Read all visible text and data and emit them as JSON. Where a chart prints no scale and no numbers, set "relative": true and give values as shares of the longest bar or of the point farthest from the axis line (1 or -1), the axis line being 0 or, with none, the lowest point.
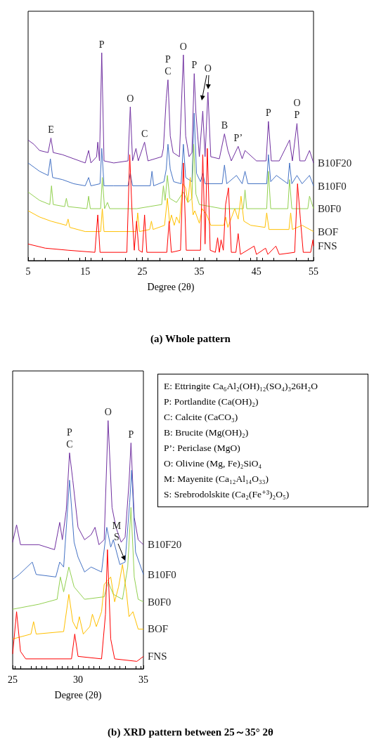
{
  "chart_data": [
    {
      "type": "line",
      "title": "(a) Whole pattern",
      "xlabel": "Degree (2θ)",
      "relative": true,
      "xlim": [
        5,
        55
      ],
      "xticks": [
        5,
        15,
        25,
        35,
        45,
        55
      ],
      "grid": false,
      "legend": false,
      "marker": "none",
      "series": [
        {
          "name": "B10F20",
          "color": "#7030a0",
          "x": [
            5,
            6,
            7,
            8.5,
            9.0,
            9.4,
            11,
            13,
            15,
            15.6,
            16,
            17.0,
            17.2,
            17.5,
            17.9,
            18.3,
            20,
            22.5,
            22.9,
            23.3,
            23.9,
            24.3,
            25.4,
            26,
            28.4,
            28.7,
            29.2,
            29.5,
            29.9,
            30.4,
            31.5,
            32.2,
            32.6,
            33.2,
            33.7,
            34.1,
            34.4,
            35.0,
            35.6,
            36.0,
            36.5,
            37.0,
            38.5,
            39.4,
            40.0,
            40.6,
            41.8,
            42.5,
            43.0,
            45,
            46.7,
            47.1,
            47.6,
            49,
            50.8,
            51.3,
            52.1,
            52.6,
            53.5,
            54.3,
            55
          ],
          "values": [
            0.58,
            0.56,
            0.53,
            0.52,
            0.59,
            0.52,
            0.51,
            0.49,
            0.47,
            0.53,
            0.47,
            0.5,
            0.57,
            0.48,
            1.0,
            0.48,
            0.47,
            0.48,
            0.74,
            0.48,
            0.54,
            0.48,
            0.57,
            0.48,
            0.5,
            0.54,
            0.78,
            0.87,
            0.6,
            0.52,
            0.5,
            0.99,
            0.6,
            0.5,
            0.52,
            0.9,
            0.71,
            0.5,
            0.72,
            0.5,
            0.81,
            0.5,
            0.49,
            0.61,
            0.53,
            0.48,
            0.55,
            0.49,
            0.53,
            0.48,
            0.48,
            0.67,
            0.48,
            0.48,
            0.58,
            0.48,
            0.66,
            0.48,
            0.48,
            0.53,
            0.47
          ]
        },
        {
          "name": "B10F0",
          "color": "#4472c4",
          "x": [
            5,
            6,
            7,
            8.5,
            8.9,
            9.3,
            11,
            13,
            15,
            15.6,
            16,
            17.6,
            17.9,
            18.3,
            20,
            22.5,
            22.9,
            23.3,
            26.4,
            26.7,
            27,
            28.8,
            29.2,
            29.5,
            29.9,
            30.5,
            31.8,
            32.2,
            32.6,
            33.7,
            34.1,
            34.5,
            35.2,
            35.6,
            36,
            39,
            39.4,
            39.8,
            41.5,
            42.5,
            43,
            43.5,
            46.8,
            47.1,
            47.5,
            48.5,
            50.5,
            50.8,
            51.2,
            52.1,
            53,
            54.3,
            55
          ],
          "values": [
            0.47,
            0.45,
            0.43,
            0.41,
            0.49,
            0.4,
            0.39,
            0.37,
            0.36,
            0.4,
            0.36,
            0.37,
            0.54,
            0.36,
            0.36,
            0.36,
            0.42,
            0.36,
            0.36,
            0.43,
            0.36,
            0.38,
            0.44,
            0.56,
            0.44,
            0.38,
            0.37,
            0.56,
            0.4,
            0.38,
            0.71,
            0.42,
            0.38,
            0.42,
            0.37,
            0.37,
            0.46,
            0.37,
            0.41,
            0.37,
            0.43,
            0.37,
            0.37,
            0.51,
            0.38,
            0.41,
            0.37,
            0.47,
            0.37,
            0.41,
            0.37,
            0.41,
            0.36
          ]
        },
        {
          "name": "B0F0",
          "color": "#92d050",
          "x": [
            5,
            7,
            8.8,
            9.1,
            9.4,
            11.4,
            11.7,
            12,
            15.3,
            15.6,
            15.9,
            17.7,
            18.0,
            18.4,
            18.9,
            19.3,
            24,
            28.4,
            28.7,
            29.0,
            29.4,
            29.8,
            31,
            32.2,
            33,
            33.7,
            34.0,
            34.4,
            35,
            39,
            42.7,
            43.0,
            43.3,
            46.8,
            47.1,
            47.5,
            50.5,
            50.8,
            51.2,
            54,
            54.3,
            55
          ],
          "values": [
            0.33,
            0.29,
            0.27,
            0.36,
            0.27,
            0.26,
            0.3,
            0.26,
            0.25,
            0.31,
            0.25,
            0.25,
            0.4,
            0.25,
            0.28,
            0.25,
            0.25,
            0.27,
            0.36,
            0.29,
            0.41,
            0.3,
            0.28,
            0.33,
            0.28,
            0.3,
            0.56,
            0.32,
            0.27,
            0.25,
            0.25,
            0.34,
            0.25,
            0.25,
            0.43,
            0.25,
            0.25,
            0.39,
            0.25,
            0.25,
            0.31,
            0.25
          ]
        },
        {
          "name": "BOF",
          "color": "#ffc000",
          "x": [
            5,
            7,
            9,
            11.7,
            12.0,
            12.3,
            15,
            17.7,
            18.0,
            18.3,
            21,
            23.9,
            24.2,
            24.5,
            26.3,
            26.6,
            26.9,
            28.9,
            29.4,
            29.8,
            30.1,
            30.6,
            31.0,
            31.5,
            32.1,
            32.6,
            33.0,
            33.4,
            33.9,
            34.2,
            35.0,
            35.5,
            36.3,
            37,
            39.3,
            39.6,
            40,
            41.2,
            41.8,
            42.3,
            42.8,
            44,
            46.5,
            46.8,
            47.2,
            50.7,
            51.0,
            51.3,
            53,
            55
          ],
          "values": [
            0.24,
            0.21,
            0.19,
            0.17,
            0.2,
            0.16,
            0.14,
            0.14,
            0.25,
            0.14,
            0.14,
            0.14,
            0.23,
            0.14,
            0.15,
            0.19,
            0.15,
            0.17,
            0.3,
            0.18,
            0.22,
            0.17,
            0.21,
            0.18,
            0.37,
            0.35,
            0.28,
            0.4,
            0.22,
            0.24,
            0.18,
            0.25,
            0.22,
            0.17,
            0.17,
            0.21,
            0.16,
            0.25,
            0.2,
            0.31,
            0.19,
            0.17,
            0.16,
            0.23,
            0.15,
            0.15,
            0.23,
            0.15,
            0.17,
            0.14
          ]
        },
        {
          "name": "FNS",
          "color": "#ff0000",
          "x": [
            5,
            8,
            12,
            16.7,
            17.2,
            17.6,
            22.3,
            22.8,
            23.2,
            23.6,
            24.0,
            24.4,
            25.0,
            25.4,
            25.8,
            29.3,
            29.7,
            30.1,
            31.7,
            32.2,
            32.7,
            35.2,
            35.6,
            36.0,
            36.4,
            36.9,
            37.8,
            38.2,
            38.5,
            38.8,
            39.2,
            39.6,
            40.1,
            40.6,
            41.4,
            41.8,
            42.2,
            44.6,
            45,
            46.6,
            47,
            48.4,
            49,
            51.7,
            52.2,
            52.7,
            53.2,
            54.5,
            54.9,
            55
          ],
          "values": [
            0.08,
            0.06,
            0.05,
            0.04,
            0.22,
            0.04,
            0.04,
            0.51,
            0.24,
            0.05,
            0.19,
            0.05,
            0.04,
            0.22,
            0.04,
            0.04,
            0.19,
            0.04,
            0.05,
            0.47,
            0.05,
            0.05,
            0.51,
            0.08,
            0.54,
            0.05,
            0.04,
            0.11,
            0.04,
            0.1,
            0.05,
            0.27,
            0.35,
            0.04,
            0.04,
            0.13,
            0.03,
            0.07,
            0.03,
            0.06,
            0.03,
            0.07,
            0.03,
            0.04,
            0.37,
            0.2,
            0.04,
            0.04,
            0.1,
            0.07
          ]
        }
      ],
      "annotations": [
        {
          "text": "E",
          "x": 9.0,
          "y": 0.59
        },
        {
          "text": "P",
          "x": 17.9,
          "y": 1.0
        },
        {
          "text": "O",
          "x": 22.9,
          "y": 0.74
        },
        {
          "text": "C",
          "x": 25.4,
          "y": 0.57
        },
        {
          "text": "P",
          "x": 29.5,
          "y": 0.87
        },
        {
          "text": "C",
          "x": 29.5,
          "y": 0.87
        },
        {
          "text": "O",
          "x": 32.2,
          "y": 0.99
        },
        {
          "text": "P",
          "x": 34.1,
          "y": 0.9
        },
        {
          "text": "O",
          "x": 36.5,
          "y": 0.81
        },
        {
          "text": "B",
          "x": 39.4,
          "y": 0.61
        },
        {
          "text": "P’",
          "x": 41.8,
          "y": 0.55
        },
        {
          "text": "P",
          "x": 47.1,
          "y": 0.67
        },
        {
          "text": "O",
          "x": 52.1,
          "y": 0.66
        },
        {
          "text": "P",
          "x": 52.1,
          "y": 0.66
        }
      ]
    },
    {
      "type": "line",
      "title": "(b) XRD pattern between 25～35° 2θ",
      "xlabel": "Degree (2θ)",
      "relative": true,
      "xlim": [
        25,
        35
      ],
      "xticks": [
        25,
        30,
        35
      ],
      "grid": false,
      "legend": false,
      "marker": "none",
      "series": [
        {
          "name": "B10F20",
          "color": "#7030a0",
          "x": [
            25,
            25.3,
            25.6,
            27,
            28.2,
            28.6,
            28.8,
            29.1,
            29.35,
            29.6,
            30,
            30.5,
            31,
            31.3,
            31.6,
            32.0,
            32.3,
            32.6,
            32.9,
            33.3,
            33.6,
            33.9,
            34.05,
            34.3,
            34.6,
            35
          ],
          "values": [
            0.51,
            0.58,
            0.5,
            0.5,
            0.48,
            0.59,
            0.52,
            0.64,
            0.87,
            0.76,
            0.57,
            0.52,
            0.54,
            0.57,
            0.5,
            0.52,
            1.0,
            0.65,
            0.57,
            0.51,
            0.53,
            0.75,
            0.91,
            0.61,
            0.52,
            0.5
          ]
        },
        {
          "name": "B10F0",
          "color": "#4472c4",
          "x": [
            25,
            25.5,
            26.5,
            26.8,
            28.3,
            28.6,
            28.9,
            29.35,
            29.7,
            30,
            30.5,
            31,
            31.8,
            32.2,
            32.5,
            32.7,
            33.2,
            33.6,
            33.95,
            34.1,
            34.4,
            35
          ],
          "values": [
            0.36,
            0.38,
            0.43,
            0.38,
            0.37,
            0.43,
            0.41,
            0.76,
            0.51,
            0.45,
            0.39,
            0.41,
            0.39,
            0.57,
            0.49,
            0.52,
            0.42,
            0.43,
            0.67,
            0.8,
            0.47,
            0.38
          ]
        },
        {
          "name": "B0F0",
          "color": "#92d050",
          "x": [
            25,
            27,
            28.4,
            28.65,
            28.9,
            29.3,
            29.7,
            30.5,
            32,
            32.3,
            32.7,
            33.4,
            33.8,
            34.05,
            34.3,
            34.6,
            35
          ],
          "values": [
            0.24,
            0.26,
            0.28,
            0.37,
            0.31,
            0.41,
            0.33,
            0.28,
            0.29,
            0.35,
            0.3,
            0.28,
            0.41,
            0.65,
            0.37,
            0.28,
            0.27
          ]
        },
        {
          "name": "BOF",
          "color": "#ffc000",
          "x": [
            25,
            26.4,
            26.6,
            26.8,
            28.9,
            29.3,
            29.6,
            29.9,
            30.1,
            30.4,
            30.9,
            31.1,
            31.4,
            31.8,
            32.0,
            32.5,
            32.8,
            33.1,
            33.4,
            33.7,
            33.9,
            34.2,
            34.6,
            35
          ],
          "values": [
            0.12,
            0.14,
            0.19,
            0.14,
            0.15,
            0.3,
            0.19,
            0.16,
            0.21,
            0.14,
            0.17,
            0.22,
            0.17,
            0.23,
            0.34,
            0.37,
            0.27,
            0.33,
            0.42,
            0.31,
            0.21,
            0.23,
            0.16,
            0.16
          ]
        },
        {
          "name": "FNS",
          "color": "#ff0000",
          "x": [
            25,
            25.3,
            25.6,
            26,
            29.5,
            29.75,
            30,
            31.8,
            32.1,
            32.25,
            32.5,
            32.8,
            34.5,
            35
          ],
          "values": [
            0.06,
            0.23,
            0.07,
            0.04,
            0.04,
            0.14,
            0.05,
            0.04,
            0.22,
            0.48,
            0.12,
            0.04,
            0.03,
            0.05
          ]
        }
      ],
      "annotations": [
        {
          "text": "P",
          "x": 29.35,
          "y": 0.87
        },
        {
          "text": "C",
          "x": 29.35,
          "y": 0.87
        },
        {
          "text": "O",
          "x": 32.3,
          "y": 1.0
        },
        {
          "text": "P",
          "x": 34.05,
          "y": 0.91
        },
        {
          "text": "M\nS",
          "x": 33.6,
          "y": 0.43
        },
        "E: Ettringite Ca₆Al₂(OH)₁₂(SO₄)₃26H₂O",
        "P: Portlandite (Ca(OH)₂)",
        "C: Calcite (CaCO₃)",
        "B: Brucite (Mg(OH)₂)",
        "P’: Periclase (MgO)",
        "O: Olivine (Mg, Fe)₂SiO₄",
        "M: Mayenite (Ca₁₂Al₁₄O₃₃)",
        "S: Srebrodolskite (Ca₂(Fe⁺³)₂O₅)"
      ]
    }
  ]
}
